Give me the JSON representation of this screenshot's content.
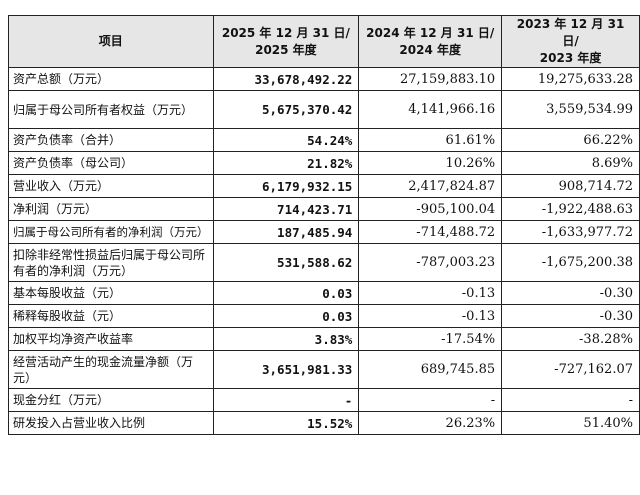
{
  "table": {
    "headers": [
      "项目",
      "2025 年 12 月 31 日/\n2025 年度",
      "2024 年 12 月 31 日/\n2024 年度",
      "2023 年 12 月 31 日/\n2023 年度"
    ],
    "rows": [
      {
        "label": "资产总额（万元）",
        "values": [
          "33,678,492.22",
          "27,159,883.10",
          "19,275,633.28"
        ]
      },
      {
        "label": "归属于母公司所有者权益（万元）",
        "values": [
          "5,675,370.42",
          "4,141,966.16",
          "3,559,534.99"
        ]
      },
      {
        "label": "资产负债率（合并）",
        "values": [
          "54.24%",
          "61.61%",
          "66.22%"
        ]
      },
      {
        "label": "资产负债率（母公司）",
        "values": [
          "21.82%",
          "10.26%",
          "8.69%"
        ]
      },
      {
        "label": "营业收入（万元）",
        "values": [
          "6,179,932.15",
          "2,417,824.87",
          "908,714.72"
        ]
      },
      {
        "label": "净利润（万元）",
        "values": [
          "714,423.71",
          "-905,100.04",
          "-1,922,488.63"
        ]
      },
      {
        "label": "归属于母公司所有者的净利润（万元）",
        "values": [
          "187,485.94",
          "-714,488.72",
          "-1,633,977.72"
        ]
      },
      {
        "label": "扣除非经常性损益后归属于母公司所有者的净利润（万元）",
        "values": [
          "531,588.62",
          "-787,003.23",
          "-1,675,200.38"
        ]
      },
      {
        "label": "基本每股收益（元）",
        "values": [
          "0.03",
          "-0.13",
          "-0.30"
        ]
      },
      {
        "label": "稀释每股收益（元）",
        "values": [
          "0.03",
          "-0.13",
          "-0.30"
        ]
      },
      {
        "label": "加权平均净资产收益率",
        "values": [
          "3.83%",
          "-17.54%",
          "-38.28%"
        ]
      },
      {
        "label": "经营活动产生的现金流量净额（万元）",
        "values": [
          "3,651,981.33",
          "689,745.85",
          "-727,162.07"
        ]
      },
      {
        "label": "现金分红（万元）",
        "values": [
          "-",
          "-",
          "-"
        ]
      },
      {
        "label": "研发投入占营业收入比例",
        "values": [
          "15.52%",
          "26.23%",
          "51.40%"
        ]
      }
    ]
  }
}
